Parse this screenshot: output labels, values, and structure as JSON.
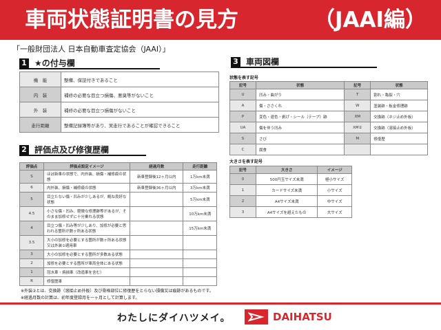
{
  "title": "車両状態証明書の見方",
  "title_sub": "（JAAI編）",
  "org": "「一般財団法人 日本自動車査定協会（JAAI）」",
  "s1": {
    "num": "1",
    "title": "★の付与欄",
    "rows": [
      [
        "機　能",
        "整備、保証付きであること"
      ],
      [
        "内　装",
        "補修の必要な目立つ損傷、悪臭等がないこと"
      ],
      [
        "外　装",
        "補修の必要な目立つ損傷がないこと"
      ],
      [
        "走行距離",
        "整備記録簿等があり、実走行であることが確認できること"
      ]
    ]
  },
  "s2": {
    "num": "2",
    "title": "評価点及び修復歴欄",
    "headers": [
      "評価点",
      "評価点設定イメージ",
      "経過月数",
      "走行距離"
    ],
    "rows": [
      [
        "S",
        "ほぼ新車の状態で、内外装、損傷・補修痕の状態",
        "新車登録後12ヶ月以内",
        "1万km未満"
      ],
      [
        "6",
        "内外装、損傷・補修痕の状態",
        "新車登録後36ヶ月以内",
        "3万km未満"
      ],
      [
        "5",
        "目立たない傷・凹みが少しあるが、概ね良好な状態",
        "",
        "5万km未満"
      ],
      [
        "4.5",
        "小さな傷・凹み、軽微な修理跡等があるが、そのまま加修せずに十分乗れる状態",
        "",
        "10万km未満"
      ],
      [
        "4",
        "目立つ傷・凹み等が少しあり、加修が必要と思われる箇所が数ヶ所ある状態",
        "",
        "15万km未満"
      ],
      [
        "3.5",
        "大小の加修を必要とする箇所が数ヶ所ある状態又は外装②適用車",
        "",
        ""
      ],
      [
        "3",
        "大小の加修を必要とする箇所が多数ある状態",
        "",
        ""
      ],
      [
        "2",
        "加修を必要とする箇所が車両全体にある状態",
        "",
        ""
      ],
      [
        "1",
        "冠水車・焼損車（改造車を含む）",
        "",
        ""
      ],
      [
        "R",
        "修復歴車",
        "",
        ""
      ]
    ],
    "notes": [
      "※外装②とは、交換跡（溶接止め外板）及び骨格部位に修復歴をとらない損傷又は痕跡があるものです。",
      "※経過月数の計算は、初年度登録月を一ヶ月として計算します。"
    ]
  },
  "s3": {
    "num": "3",
    "title": "車両図欄",
    "state_label": "状態を表す記号",
    "state_headers": [
      "記号",
      "状態",
      "記号",
      "状態"
    ],
    "state_rows": [
      [
        "U",
        "凹み・曲がり",
        "T",
        "割れ・亀裂・穴"
      ],
      [
        "A",
        "傷・ささくれ",
        "W",
        "塗装跡・板金修理跡"
      ],
      [
        "P",
        "変色・退色・剥げ・シール（テープ）跡",
        "XM",
        "交換跡（ネジ止め外板）"
      ],
      [
        "UA",
        "傷を伴う凹み",
        "XM②",
        "交換跡（溶接止め外板）"
      ],
      [
        "S",
        "さび",
        "M",
        "修復歴"
      ],
      [
        "C",
        "腐食",
        "",
        ""
      ]
    ],
    "size_label": "大きさを表す記号",
    "size_headers": [
      "記号",
      "大きさ",
      "イメージ"
    ],
    "size_rows": [
      [
        "0",
        "500円玉サイズ未満",
        "極小サイズ"
      ],
      [
        "1",
        "カードサイズ未満",
        "小サイズ"
      ],
      [
        "2",
        "A4サイズ未満",
        "中サイズ"
      ],
      [
        "3",
        "A4サイズを超えたもの",
        "大サイズ"
      ]
    ]
  },
  "footer": {
    "slogan": "わたしにダイハツメイ。",
    "brand": "DAIHATSU"
  },
  "colors": {
    "accent": "#d7262e"
  }
}
